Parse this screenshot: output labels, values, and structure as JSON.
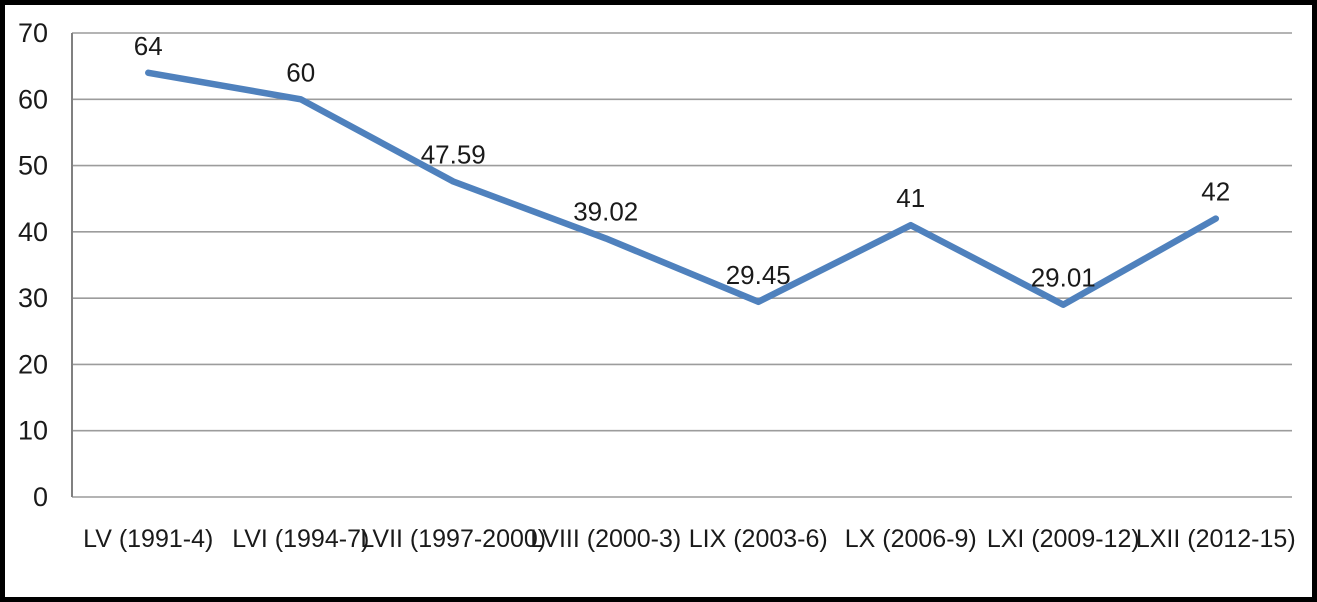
{
  "chart_data": {
    "type": "line",
    "categories": [
      "LV (1991-4)",
      "LVI (1994-7)",
      "LVII (1997-2000)",
      "LVIII (2000-3)",
      "LIX (2003-6)",
      "LX (2006-9)",
      "LXI (2009-12)",
      "LXII (2012-15)"
    ],
    "values": [
      64,
      60,
      47.59,
      39.02,
      29.45,
      41,
      29.01,
      42
    ],
    "data_labels": [
      "64",
      "60",
      "47.59",
      "39.02",
      "29.45",
      "41",
      "29.01",
      "42"
    ],
    "title": "",
    "xlabel": "",
    "ylabel": "",
    "ylim": [
      0,
      70
    ],
    "yticks": [
      0,
      10,
      20,
      30,
      40,
      50,
      60,
      70
    ],
    "ytick_labels": [
      "0",
      "10",
      "20",
      "30",
      "40",
      "50",
      "60",
      "70"
    ],
    "grid": true,
    "legend_position": "none",
    "colors": {
      "line": "#4F81BD",
      "gridline": "#9c9c9c",
      "axis": "#808080",
      "text": "#1a1a1a",
      "background": "#ffffff",
      "frame_border": "#000000"
    }
  }
}
